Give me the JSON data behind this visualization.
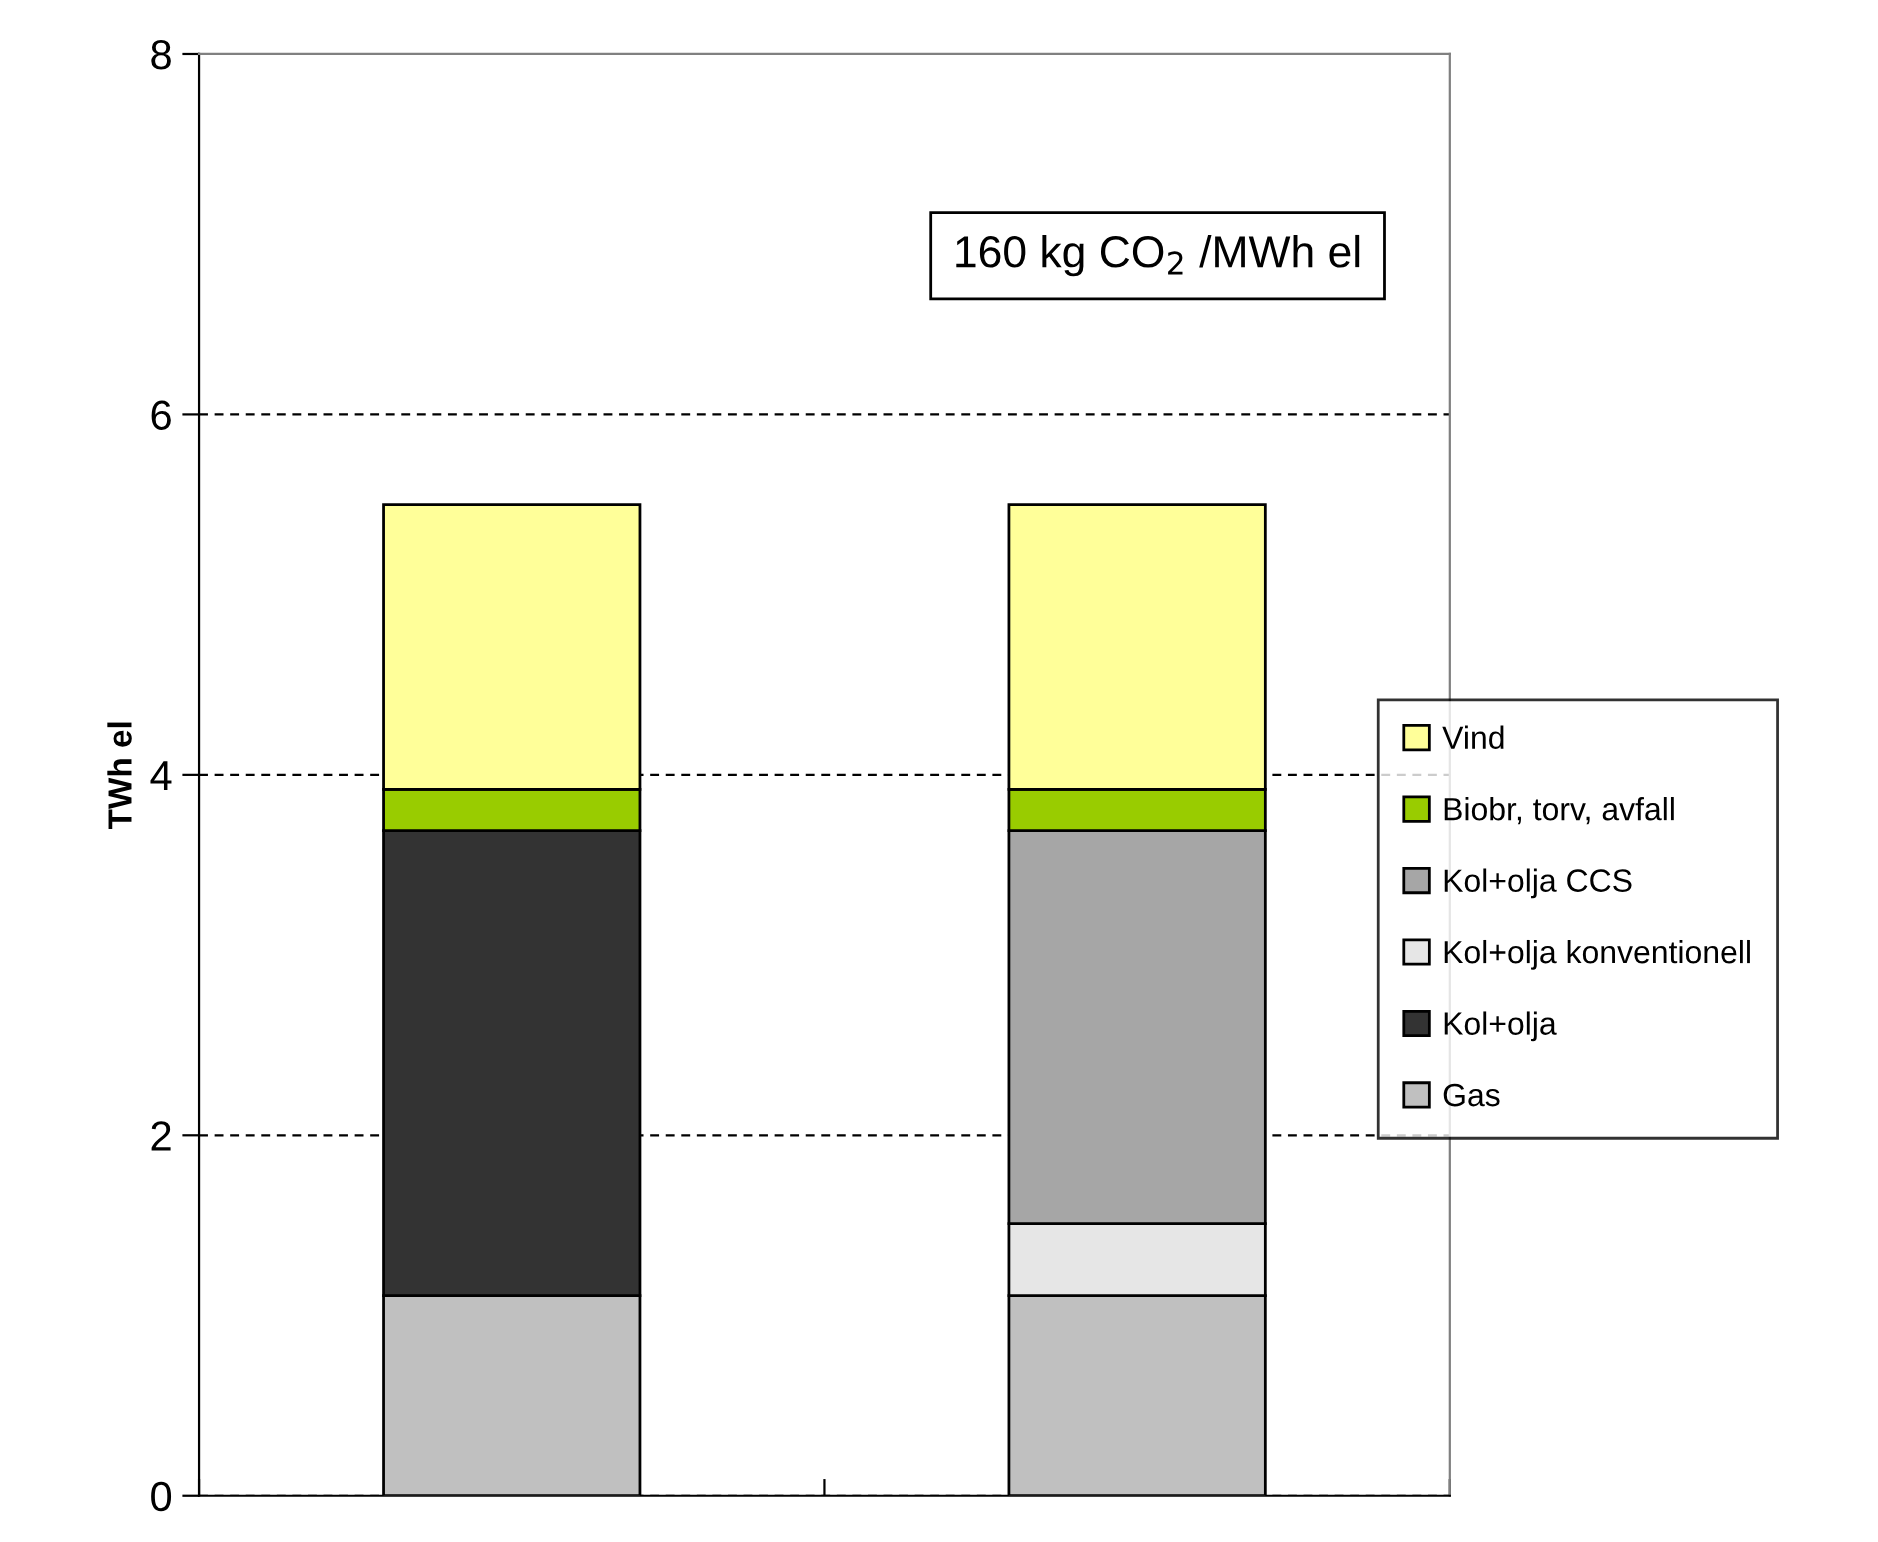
{
  "chart_data": {
    "type": "bar",
    "stacked": true,
    "ylabel": "TWh el",
    "categories": [
      null,
      null
    ],
    "series": [
      {
        "name": "Gas",
        "color": "#c0c0c0",
        "values": [
          1.11,
          1.11
        ]
      },
      {
        "name": "Kol+olja",
        "color": "#333333",
        "values": [
          2.58,
          null
        ]
      },
      {
        "name": "Kol+olja konventionell",
        "color": "#e6e6e6",
        "values": [
          null,
          0.4
        ]
      },
      {
        "name": "Kol+olja CCS",
        "color": "#a6a6a6",
        "values": [
          null,
          2.18
        ]
      },
      {
        "name": "Biobr, torv, avfall",
        "color": "#99cc00",
        "values": [
          0.23,
          0.23
        ]
      },
      {
        "name": "Vind",
        "color": "#ffff99",
        "values": [
          1.58,
          1.58
        ]
      }
    ],
    "ylim": [
      0,
      8
    ],
    "yticks": [
      0,
      2,
      4,
      6,
      8
    ],
    "grid": "y",
    "legend": "right",
    "annotations": [
      "160 kg CO$_{2}$ /MWh el"
    ]
  }
}
